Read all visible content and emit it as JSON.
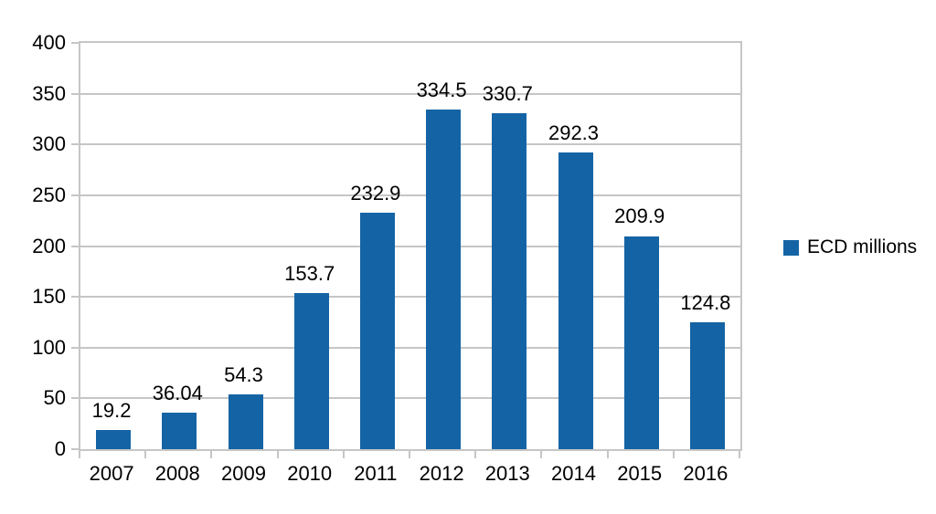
{
  "chart_data": {
    "type": "bar",
    "title": "",
    "xlabel": "",
    "ylabel": "",
    "categories": [
      "2007",
      "2008",
      "2009",
      "2010",
      "2011",
      "2012",
      "2013",
      "2014",
      "2015",
      "2016"
    ],
    "series": [
      {
        "name": "ECD millions",
        "values": [
          19.2,
          36.04,
          54.3,
          153.7,
          232.9,
          334.5,
          330.7,
          292.3,
          209.9,
          124.8
        ],
        "data_labels": [
          "19.2",
          "36.04",
          "54.3",
          "153.7",
          "232.9",
          "334.5",
          "330.7",
          "292.3",
          "209.9",
          "124.8"
        ]
      }
    ],
    "ylim": [
      0,
      400
    ],
    "ytick_interval": 50,
    "ytick_labels": [
      "0",
      "50",
      "100",
      "150",
      "200",
      "250",
      "300",
      "350",
      "400"
    ],
    "grid": true,
    "legend_position": "right",
    "colors": {
      "bar": "#1464a5",
      "gridline": "#c6c6c6",
      "axis": "#c6c6c6",
      "text": "#000000",
      "background": "#ffffff"
    }
  },
  "legend": {
    "label": "ECD millions",
    "swatch_color": "#1464a5"
  }
}
